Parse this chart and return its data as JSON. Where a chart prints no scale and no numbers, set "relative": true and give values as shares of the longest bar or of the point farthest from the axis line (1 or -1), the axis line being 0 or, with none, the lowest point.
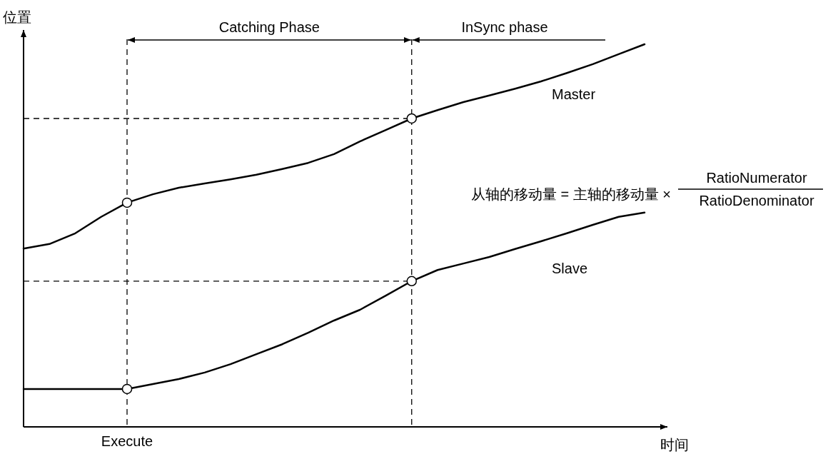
{
  "chart_data": {
    "type": "line",
    "relative": true,
    "xlabel": "时间",
    "ylabel": "位置",
    "categories": [
      null,
      null,
      null,
      null,
      null,
      null,
      null,
      null,
      null,
      null,
      null,
      null,
      null,
      null,
      null,
      null,
      null,
      null,
      null,
      null,
      null,
      null,
      null,
      null,
      null
    ],
    "series": [
      {
        "name": "Master",
        "color": "#000000",
        "values": [
          0.466,
          0.478,
          0.506,
          0.549,
          0.586,
          0.608,
          0.625,
          0.636,
          0.647,
          0.659,
          0.674,
          0.69,
          0.713,
          0.746,
          0.776,
          0.806,
          0.828,
          0.849,
          0.866,
          0.884,
          0.903,
          0.925,
          0.948,
          0.974,
          1
        ]
      },
      {
        "name": "Slave",
        "color": "#000000",
        "values": [
          0.099,
          0.099,
          0.099,
          0.099,
          0.099,
          0.112,
          0.125,
          0.142,
          0.164,
          0.19,
          0.216,
          0.246,
          0.278,
          0.306,
          0.343,
          0.381,
          0.41,
          0.427,
          0.444,
          0.465,
          0.485,
          0.506,
          0.528,
          0.549,
          0.56
        ]
      }
    ],
    "ref_lines": [
      {
        "axis": "y",
        "value": 0.806,
        "line_style": "dashed"
      },
      {
        "axis": "y",
        "value": 0.381,
        "line_style": "dashed"
      }
    ],
    "annotations": [
      "Catching Phase",
      "InSync phase",
      "从轴的移动量 = 主轴的移动量 ×",
      "RatioNumerator",
      "RatioDenominator",
      "Execute"
    ]
  }
}
